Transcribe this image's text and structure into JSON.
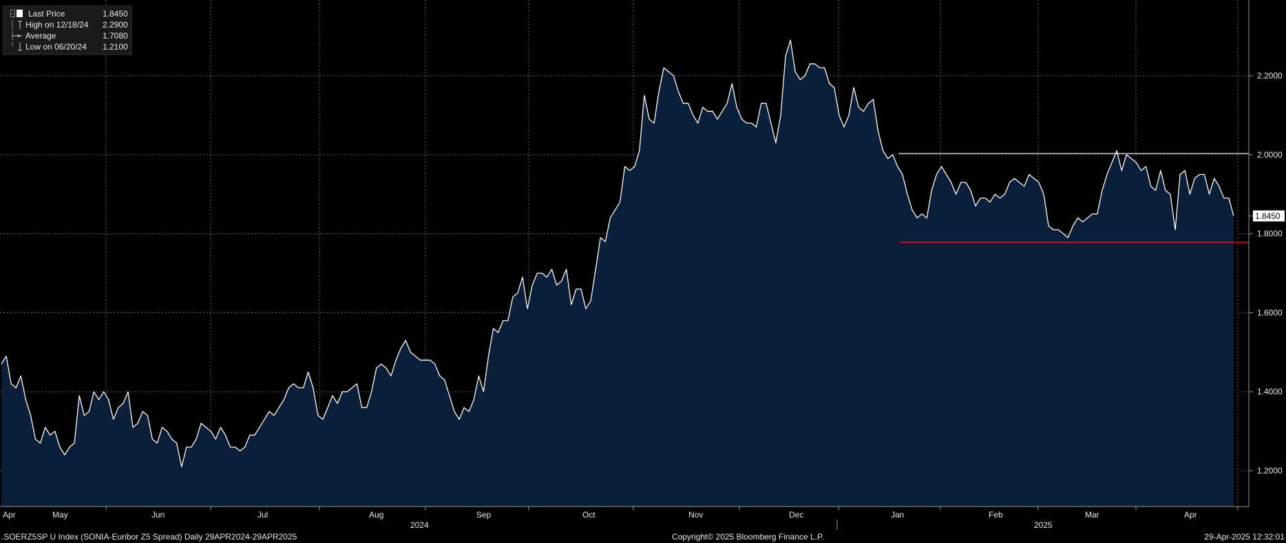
{
  "legend": {
    "rows": [
      {
        "label": "Last Price",
        "value": "1.8450"
      },
      {
        "label": "High on 12/18/24",
        "value": "2.2900"
      },
      {
        "label": "Average",
        "value": "1.7080"
      },
      {
        "label": "Low on 06/20/24",
        "value": "1.2100"
      }
    ]
  },
  "footer": {
    "left": ".SOERZ5SP U Index (SONIA-Euribor Z5 Spread)  Daily 29APR2024-29APR2025",
    "center": "Copyright© 2025 Bloomberg Finance L.P.",
    "right": "29-Apr-2025 12:32:01"
  },
  "colors": {
    "background": "#000000",
    "area_fill": "#0b1e3a",
    "line": "#ffffff",
    "grid": "#6a6a6a",
    "resistance_line": "#ffffff",
    "support_line": "#e0192f",
    "legend_bg": "#1a1a1a"
  },
  "chart_data": {
    "type": "area",
    "ylim": [
      1.1,
      2.4
    ],
    "y_ticks": [
      "1.2000",
      "1.4000",
      "1.6000",
      "1.8000",
      "2.0000",
      "2.2000"
    ],
    "y_tick_values": [
      1.2,
      1.4,
      1.6,
      1.8,
      2.0,
      2.2
    ],
    "x_month_labels": [
      "Apr",
      "May",
      "Jun",
      "Jul",
      "Aug",
      "Sep",
      "Oct",
      "Nov",
      "Dec",
      "Jan",
      "Feb",
      "Mar",
      "Apr"
    ],
    "x_year_labels": [
      "2024",
      "2025"
    ],
    "last_value_label": "1.8450",
    "grid": true,
    "legend_position": "top-left",
    "series": [
      {
        "values": [
          1.47,
          1.49,
          1.42,
          1.41,
          1.44,
          1.38,
          1.34,
          1.28,
          1.27,
          1.31,
          1.29,
          1.3,
          1.26,
          1.24,
          1.26,
          1.27,
          1.39,
          1.34,
          1.35,
          1.4,
          1.38,
          1.4,
          1.38,
          1.33,
          1.36,
          1.37,
          1.4,
          1.31,
          1.32,
          1.35,
          1.34,
          1.28,
          1.27,
          1.31,
          1.3,
          1.28,
          1.27,
          1.21,
          1.26,
          1.26,
          1.28,
          1.32,
          1.31,
          1.3,
          1.28,
          1.31,
          1.29,
          1.26,
          1.26,
          1.25,
          1.26,
          1.29,
          1.29,
          1.31,
          1.33,
          1.35,
          1.34,
          1.36,
          1.38,
          1.41,
          1.42,
          1.41,
          1.41,
          1.45,
          1.41,
          1.34,
          1.33,
          1.36,
          1.39,
          1.37,
          1.4,
          1.4,
          1.41,
          1.42,
          1.36,
          1.36,
          1.4,
          1.46,
          1.47,
          1.46,
          1.44,
          1.48,
          1.51,
          1.53,
          1.5,
          1.49,
          1.48,
          1.48,
          1.48,
          1.47,
          1.44,
          1.43,
          1.39,
          1.35,
          1.33,
          1.36,
          1.35,
          1.38,
          1.44,
          1.4,
          1.49,
          1.56,
          1.55,
          1.58,
          1.58,
          1.64,
          1.65,
          1.69,
          1.61,
          1.67,
          1.7,
          1.7,
          1.69,
          1.71,
          1.67,
          1.68,
          1.71,
          1.62,
          1.66,
          1.66,
          1.61,
          1.63,
          1.71,
          1.79,
          1.78,
          1.84,
          1.86,
          1.88,
          1.97,
          1.96,
          1.97,
          2.01,
          2.15,
          2.09,
          2.08,
          2.16,
          2.22,
          2.21,
          2.2,
          2.16,
          2.13,
          2.13,
          2.1,
          2.08,
          2.12,
          2.11,
          2.11,
          2.09,
          2.11,
          2.13,
          2.18,
          2.12,
          2.09,
          2.08,
          2.08,
          2.07,
          2.13,
          2.13,
          2.08,
          2.03,
          2.1,
          2.25,
          2.29,
          2.21,
          2.19,
          2.2,
          2.23,
          2.23,
          2.22,
          2.22,
          2.18,
          2.17,
          2.1,
          2.07,
          2.1,
          2.17,
          2.12,
          2.11,
          2.13,
          2.14,
          2.06,
          2.01,
          1.99,
          2.0,
          1.97,
          1.95,
          1.9,
          1.86,
          1.84,
          1.85,
          1.84,
          1.91,
          1.95,
          1.97,
          1.95,
          1.93,
          1.9,
          1.93,
          1.93,
          1.91,
          1.87,
          1.89,
          1.89,
          1.88,
          1.9,
          1.89,
          1.9,
          1.93,
          1.94,
          1.93,
          1.92,
          1.95,
          1.94,
          1.93,
          1.9,
          1.82,
          1.81,
          1.81,
          1.8,
          1.79,
          1.82,
          1.84,
          1.83,
          1.84,
          1.85,
          1.85,
          1.91,
          1.95,
          1.98,
          2.01,
          1.96,
          2.0,
          1.99,
          1.98,
          1.96,
          1.97,
          1.92,
          1.91,
          1.96,
          1.91,
          1.9,
          1.81,
          1.95,
          1.96,
          1.9,
          1.94,
          1.95,
          1.95,
          1.9,
          1.94,
          1.92,
          1.89,
          1.89,
          1.845
        ]
      }
    ],
    "annotations": [
      {
        "type": "horizontal",
        "value": 2.003,
        "color": "#ffffff"
      },
      {
        "type": "horizontal",
        "value": 1.778,
        "color": "#e0192f"
      }
    ]
  }
}
